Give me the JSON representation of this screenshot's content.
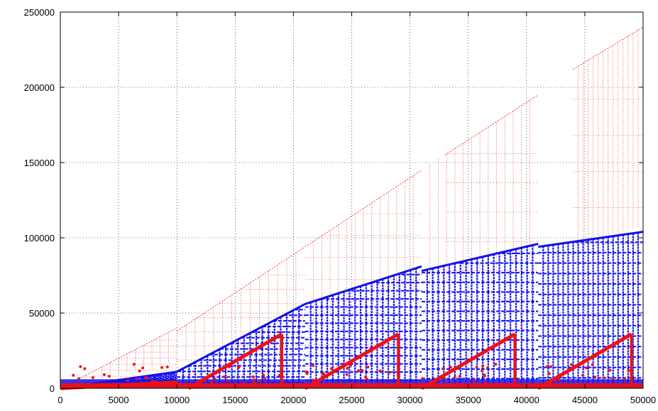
{
  "chart_data": {
    "type": "scatter",
    "title": "",
    "xlabel": "",
    "ylabel": "",
    "xlim": [
      0,
      50000
    ],
    "ylim": [
      0,
      250000
    ],
    "x_ticks": [
      0,
      5000,
      10000,
      15000,
      20000,
      25000,
      30000,
      35000,
      40000,
      45000,
      50000
    ],
    "y_ticks": [
      0,
      50000,
      100000,
      150000,
      200000,
      250000
    ],
    "x_tick_labels": [
      "0",
      "5000",
      "10000",
      "15000",
      "20000",
      "25000",
      "30000",
      "35000",
      "40000",
      "45000",
      "50000"
    ],
    "y_tick_labels": [
      "0",
      "50000",
      "100000",
      "150000",
      "200000",
      "250000"
    ],
    "grid": true,
    "legend": "none",
    "colors": {
      "series_red": "#ee1111",
      "series_blue": "#1111ee"
    },
    "series": [
      {
        "color": "#ee1111",
        "style": "sparse",
        "description_points": [
          {
            "segment": [
              0,
              10000
            ],
            "y_max_line": [
              [
                0,
                0
              ],
              [
                10000,
                40000
              ]
            ]
          },
          {
            "segment": [
              10000,
              21000
            ],
            "y_max_line": [
              [
                10000,
                38000
              ],
              [
                21000,
                94000
              ]
            ]
          },
          {
            "segment": [
              21000,
              31000
            ],
            "y_max_line": [
              [
                21000,
                94000
              ],
              [
                31000,
                145000
              ]
            ]
          },
          {
            "segment": [
              31000,
              41000
            ],
            "y_max_line": [
              [
                33000,
                155000
              ],
              [
                41000,
                195000
              ]
            ]
          },
          {
            "segment": [
              44000,
              50000
            ],
            "y_max_line": [
              [
                44000,
                212000
              ],
              [
                50000,
                240000
              ]
            ]
          }
        ]
      },
      {
        "color": "#1111ee",
        "style": "dense",
        "description_points": [
          {
            "segment": [
              0,
              10000
            ],
            "y_max_line": [
              [
                0,
                0
              ],
              [
                10000,
                11000
              ]
            ]
          },
          {
            "segment": [
              10000,
              21000
            ],
            "y_max_line": [
              [
                10000,
                11000
              ],
              [
                21000,
                56000
              ]
            ]
          },
          {
            "segment": [
              21000,
              31000
            ],
            "y_max_line": [
              [
                21000,
                56000
              ],
              [
                31000,
                81000
              ]
            ]
          },
          {
            "segment": [
              31000,
              41000
            ],
            "y_max_line": [
              [
                31000,
                78000
              ],
              [
                41000,
                96000
              ]
            ]
          },
          {
            "segment": [
              41000,
              50000
            ],
            "y_max_line": [
              [
                41000,
                94000
              ],
              [
                50000,
                104000
              ]
            ]
          }
        ]
      },
      {
        "color": "#ee1111",
        "style": "thick",
        "description_points": [
          {
            "segment": [
              0,
              10000
            ],
            "y_max_line": [
              [
                0,
                0
              ],
              [
                10000,
                4000
              ]
            ]
          },
          {
            "segment": [
              11000,
              19000
            ],
            "y_max_line": [
              [
                11000,
                0
              ],
              [
                19000,
                36000
              ]
            ]
          },
          {
            "segment": [
              21000,
              29000
            ],
            "y_max_line": [
              [
                21000,
                0
              ],
              [
                29000,
                36000
              ]
            ]
          },
          {
            "segment": [
              31000,
              39000
            ],
            "y_max_line": [
              [
                31000,
                0
              ],
              [
                39000,
                36000
              ]
            ]
          },
          {
            "segment": [
              41000,
              49000
            ],
            "y_max_line": [
              [
                41000,
                0
              ],
              [
                49000,
                36000
              ]
            ]
          }
        ]
      }
    ]
  }
}
